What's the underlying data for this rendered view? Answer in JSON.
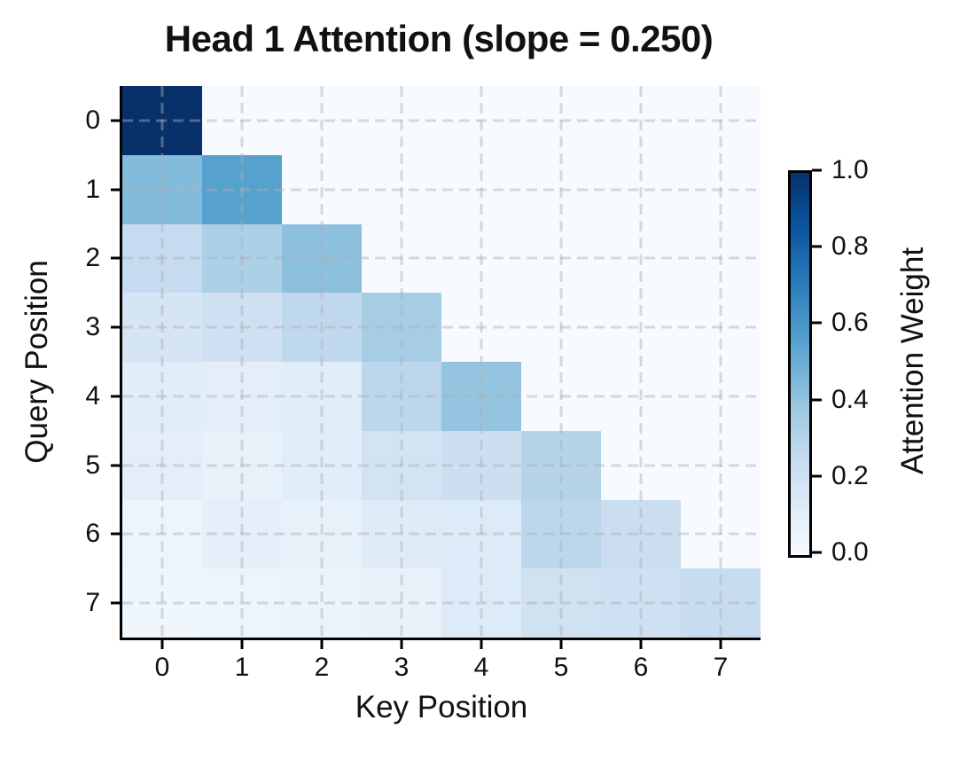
{
  "figure": {
    "title": "Head 1 Attention (slope = 0.250)",
    "x_axis": {
      "label": "Key Position",
      "ticks": [
        "0",
        "1",
        "2",
        "3",
        "4",
        "5",
        "6",
        "7"
      ]
    },
    "y_axis": {
      "label": "Query Position",
      "ticks": [
        "0",
        "1",
        "2",
        "3",
        "4",
        "5",
        "6",
        "7"
      ]
    },
    "colorbar": {
      "label": "Attention Weight",
      "ticks": [
        "1.0",
        "0.8",
        "0.6",
        "0.4",
        "0.2",
        "0.0"
      ]
    }
  },
  "colors": {
    "colormap": "Blues",
    "colormap_anchors": [
      "#f7fbff",
      "#deebf7",
      "#c6dbef",
      "#9ecae1",
      "#6baed6",
      "#4292c6",
      "#2171b5",
      "#08519c",
      "#08306b"
    ],
    "masked_cell": "#f7fbff",
    "spine": "#000000",
    "background": "#ffffff",
    "text": "#111111"
  },
  "chart_data": {
    "type": "heatmap",
    "title": "Head 1 Attention (slope = 0.250)",
    "xlabel": "Key Position",
    "ylabel": "Query Position",
    "x": [
      0,
      1,
      2,
      3,
      4,
      5,
      6,
      7
    ],
    "y": [
      0,
      1,
      2,
      3,
      4,
      5,
      6,
      7
    ],
    "slope": 0.25,
    "causal_mask": true,
    "colorbar_label": "Attention Weight",
    "colorbar_ticks": [
      0.0,
      0.2,
      0.4,
      0.6,
      0.8,
      1.0
    ],
    "value_range": [
      0.0,
      1.0
    ],
    "grid": "dashed",
    "legend_position": "right-colorbar",
    "matrix": [
      [
        1.0,
        0.0,
        0.0,
        0.0,
        0.0,
        0.0,
        0.0,
        0.0
      ],
      [
        0.44,
        0.56,
        0.0,
        0.0,
        0.0,
        0.0,
        0.0,
        0.0
      ],
      [
        0.25,
        0.33,
        0.42,
        0.0,
        0.0,
        0.0,
        0.0,
        0.0
      ],
      [
        0.17,
        0.21,
        0.27,
        0.35,
        0.0,
        0.0,
        0.0,
        0.0
      ],
      [
        0.11,
        0.1,
        0.11,
        0.28,
        0.4,
        0.0,
        0.0,
        0.0
      ],
      [
        0.1,
        0.08,
        0.11,
        0.19,
        0.22,
        0.3,
        0.0,
        0.0
      ],
      [
        0.05,
        0.09,
        0.08,
        0.12,
        0.13,
        0.28,
        0.23,
        0.0
      ],
      [
        0.04,
        0.05,
        0.06,
        0.07,
        0.13,
        0.2,
        0.21,
        0.24
      ]
    ]
  }
}
